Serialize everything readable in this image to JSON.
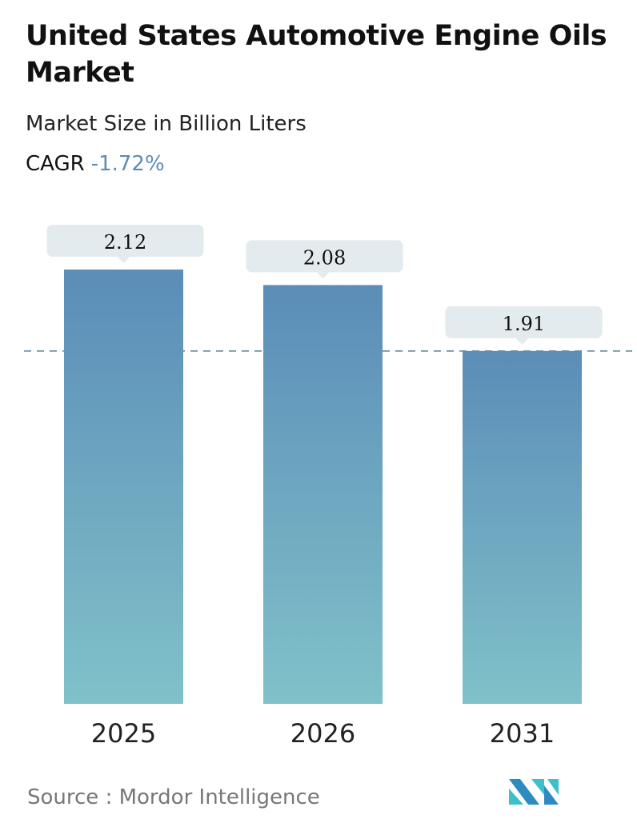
{
  "title": "United States Automotive Engine Oils Market",
  "subtitle": "Market Size in Billion Liters",
  "cagr_label": "CAGR",
  "cagr_value": "-1.72%",
  "source": "Source :  Mordor Intelligence",
  "colors": {
    "bar_top": "#5b8db8",
    "bar_bottom": "#80c1c9",
    "label_bg": "#e3ebee",
    "cagr": "#5b8db8",
    "dashed_line": "#5a7f95"
  },
  "chart_data": {
    "type": "bar",
    "categories": [
      "2025",
      "2026",
      "2031"
    ],
    "values": [
      2.12,
      2.08,
      1.91
    ],
    "data_labels": [
      "2.12",
      "2.08",
      "1.91"
    ],
    "ylim": [
      1.0,
      2.12
    ],
    "grid": false,
    "reference_line": {
      "style": "dashed",
      "value": 1.91
    }
  }
}
